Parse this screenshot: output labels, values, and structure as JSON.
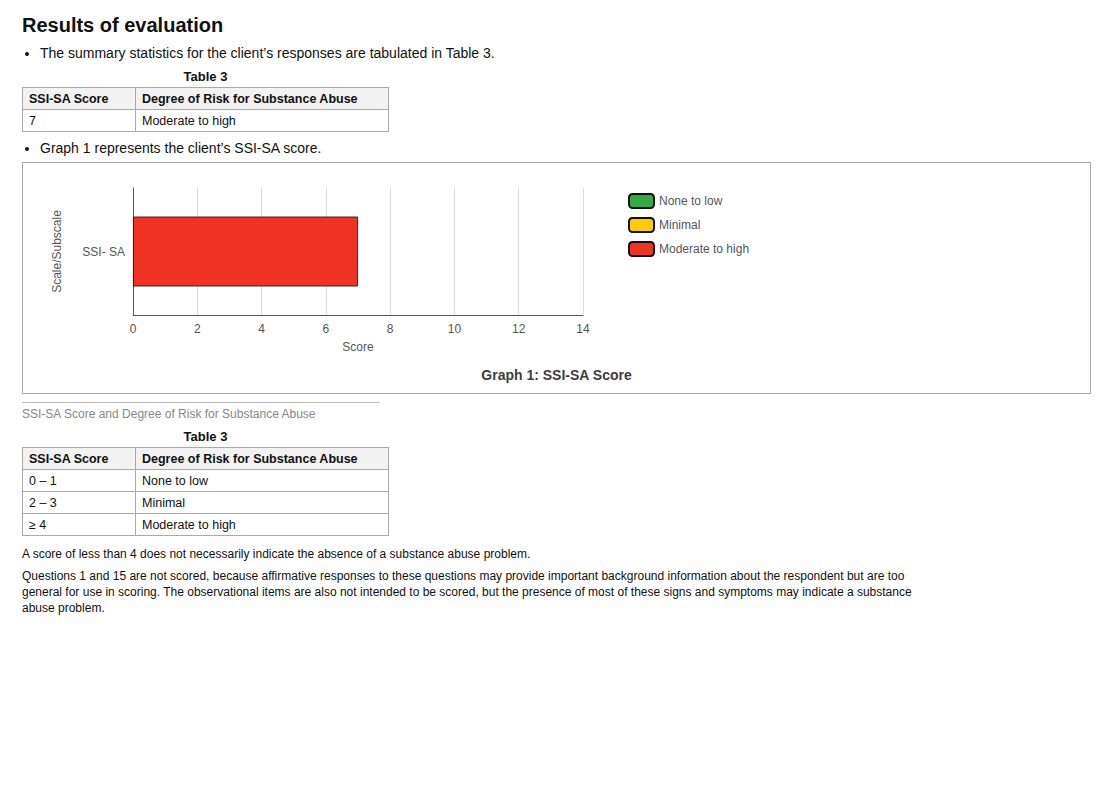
{
  "chart_data": {
    "type": "bar",
    "orientation": "horizontal",
    "title": "Graph 1: SSI-SA Score",
    "categories": [
      "SSI- SA"
    ],
    "series": [
      {
        "name": "None to low",
        "color": "#33aa44",
        "values": [
          null
        ]
      },
      {
        "name": "Minimal",
        "color": "#ffcc00",
        "values": [
          null
        ]
      },
      {
        "name": "Moderate to high",
        "color": "#ee3322",
        "values": [
          7
        ]
      }
    ],
    "xlabel": "Score",
    "ylabel": "Scale/Subscale",
    "xlim": [
      0,
      14
    ],
    "xticks": [
      0,
      2,
      4,
      6,
      8,
      10,
      12,
      14
    ],
    "grid": true,
    "legend": "right",
    "annotations": {
      "above": [
        {
          "heading": "Results of evaluation"
        },
        {
          "bullet": "The summary statistics for the client’s responses are tabulated in Table 3."
        },
        {
          "table": {
            "title": "Table 3",
            "headers": [
              "SSI-SA Score",
              "Degree of Risk for Substance Abuse"
            ],
            "rows": [
              [
                "7",
                "Moderate to high"
              ]
            ]
          }
        },
        {
          "bullet": "Graph 1 represents the client’s SSI-SA score."
        }
      ],
      "below": [
        {
          "caption": "SSI-SA Score and Degree of Risk for Substance Abuse"
        },
        {
          "table": {
            "title": "Table 3",
            "headers": [
              "SSI-SA Score",
              "Degree of Risk for Substance Abuse"
            ],
            "rows": [
              [
                "0 – 1",
                "None to low"
              ],
              [
                "2 – 3",
                "Minimal"
              ],
              [
                "≥ 4",
                "Moderate to high"
              ]
            ]
          }
        },
        {
          "note": "A score of less than 4 does not necessarily indicate the absence of a substance abuse problem."
        },
        {
          "note": "Questions 1 and 15 are not scored, because affirmative responses to these questions may provide important background information about the respondent but are too\ngeneral for use in scoring. The observational items are also not intended to be scored, but the presence of most of these signs and symptoms may indicate a substance\nabuse problem."
        }
      ]
    }
  }
}
